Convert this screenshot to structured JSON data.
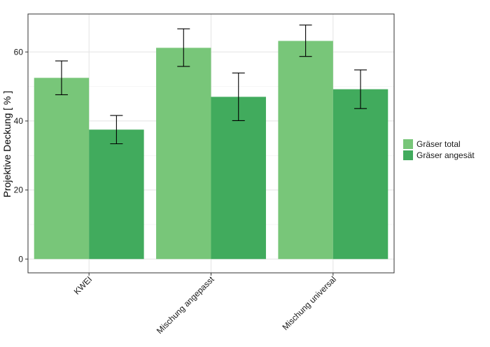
{
  "chart_data": {
    "type": "bar",
    "title": "",
    "xlabel": "",
    "ylabel": "Projektive Deckung  [ % ]",
    "ylim": [
      -4,
      71
    ],
    "yticks": [
      0,
      20,
      40,
      60
    ],
    "categories": [
      "KWEI",
      "Mischung angepasst",
      "Mischung universal"
    ],
    "series": [
      {
        "name": "Gräser total",
        "color": "#78c679",
        "values": [
          52.5,
          61.2,
          63.2
        ],
        "error_low": [
          47.6,
          55.8,
          58.7
        ],
        "error_high": [
          57.4,
          66.7,
          67.8
        ]
      },
      {
        "name": "Gräser angesät",
        "color": "#41ab5d",
        "values": [
          37.5,
          47.0,
          49.2
        ],
        "error_low": [
          33.4,
          40.1,
          43.6
        ],
        "error_high": [
          41.6,
          53.9,
          54.8
        ]
      }
    ],
    "grid": true,
    "legend_position": "right"
  }
}
